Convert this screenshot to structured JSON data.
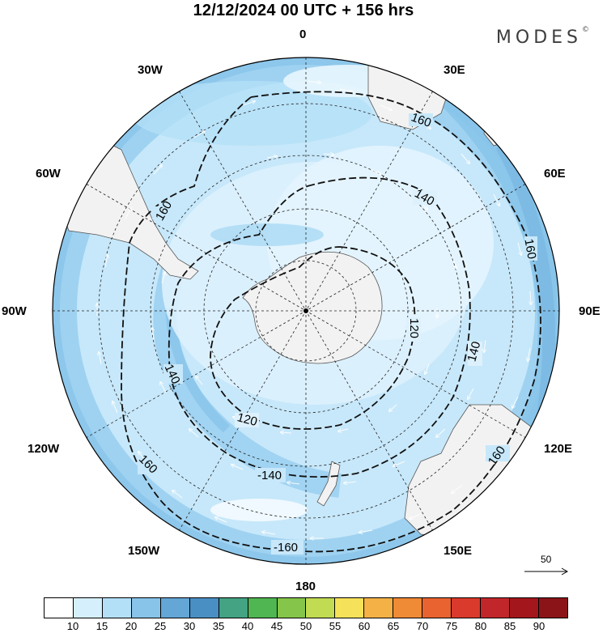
{
  "title": "12/12/2024  00 UTC  + 156 hrs",
  "brand": "MODES",
  "brand_mark": "©",
  "meridian_labels": {
    "lon_0": "0",
    "lon_30e": "30E",
    "lon_60e": "60E",
    "lon_90e": "90E",
    "lon_120e": "120E",
    "lon_150e": "150E",
    "lon_180": "180",
    "lon_150w": "150W",
    "lon_120w": "120W",
    "lon_90w": "90W",
    "lon_60w": "60W",
    "lon_30w": "30W"
  },
  "contour_labels": {
    "c160_nw": "160",
    "c160_ne": "160",
    "c160_e": "160",
    "c160_se": "160",
    "c160_sw": "160",
    "c160_s": "-160",
    "c140_n": "140",
    "c140_e": "140",
    "c140_w": "140",
    "c140_s": "-140",
    "c120_e": "120",
    "c120_s": "120"
  },
  "reference_vector": "50",
  "colorbar": {
    "ticks": [
      "10",
      "15",
      "20",
      "25",
      "30",
      "35",
      "40",
      "45",
      "50",
      "55",
      "60",
      "65",
      "70",
      "75",
      "80",
      "85",
      "90"
    ],
    "colors": [
      "#ffffff",
      "#d6effd",
      "#b4e0f7",
      "#88c4ea",
      "#64a6d6",
      "#4a8fc3",
      "#43a383",
      "#4fb651",
      "#85c549",
      "#c1db52",
      "#f6e25a",
      "#f3b146",
      "#ef8a36",
      "#e8632f",
      "#d93a2c",
      "#c1272a",
      "#a3171c",
      "#8a1418"
    ]
  }
}
